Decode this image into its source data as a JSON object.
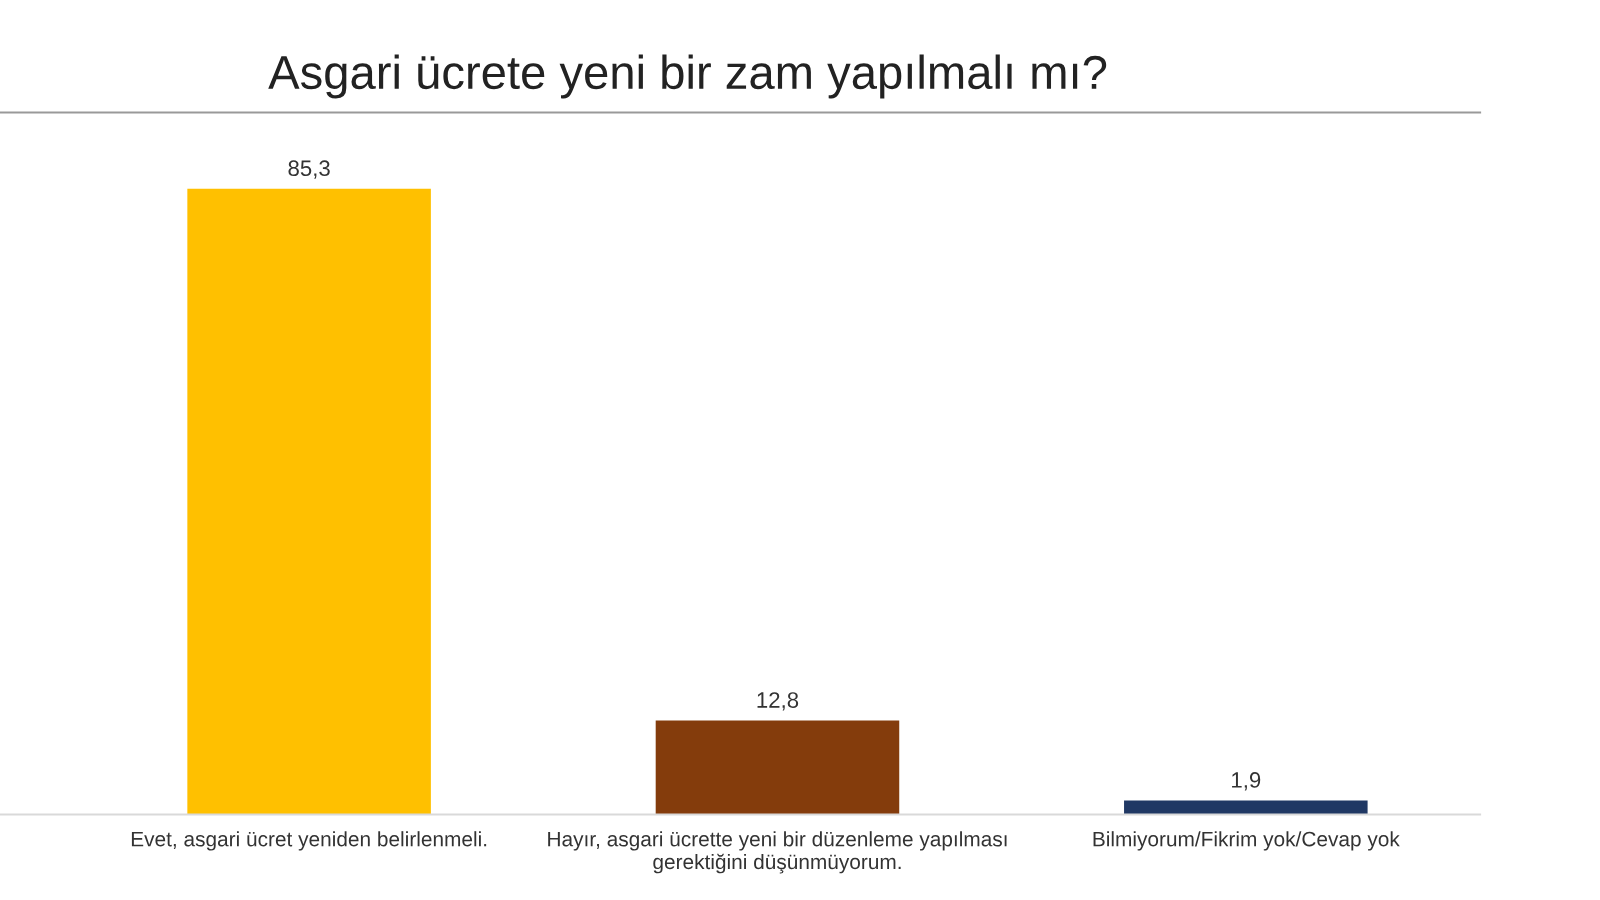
{
  "chart_data": {
    "type": "bar",
    "title": "Asgari ücrete yeni bir zam yapılmalı mı?",
    "categories": [
      "Evet, asgari ücret yeniden belirlenmeli.",
      "Hayır, asgari ücrette yeni bir düzenleme yapılması\ngerektiğini düşünmüyorum.",
      "Bilmiyorum/Fikrim yok/Cevap yok"
    ],
    "values": [
      85.3,
      12.8,
      1.9
    ],
    "colors": [
      "#ffc000",
      "#843c0c",
      "#203864"
    ],
    "value_labels": [
      "85,3",
      "12,8",
      "1,9"
    ],
    "grid": false,
    "legend": false
  }
}
